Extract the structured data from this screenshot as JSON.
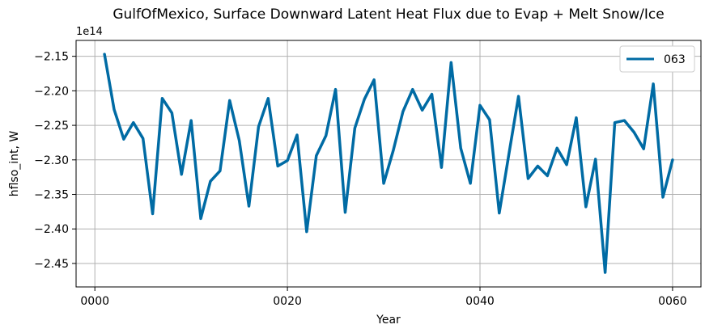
{
  "chart_data": {
    "type": "line",
    "title": "GulfOfMexico, Surface Downward Latent Heat Flux due to Evap + Melt Snow/Ice",
    "xlabel": "Year",
    "ylabel": "hflso_int, W",
    "y_offset_label": "1e14",
    "y_scale": 100000000000000.0,
    "xlim": [
      -1.95,
      62.95
    ],
    "ylim": [
      -248400000000000.0,
      -212700000000000.0
    ],
    "x_ticks": [
      0,
      20,
      40,
      60
    ],
    "x_tick_labels": [
      "0000",
      "0020",
      "0040",
      "0060"
    ],
    "y_ticks": [
      -245000000000000.0,
      -240000000000000.0,
      -235000000000000.0,
      -230000000000000.0,
      -225000000000000.0,
      -220000000000000.0,
      -215000000000000.0
    ],
    "y_tick_labels": [
      "−2.45",
      "−2.40",
      "−2.35",
      "−2.30",
      "−2.25",
      "−2.20",
      "−2.15"
    ],
    "grid": true,
    "legend_position": "top-right",
    "series": [
      {
        "name": "063",
        "color": "#006ba4",
        "x": [
          1,
          2,
          3,
          4,
          5,
          6,
          7,
          8,
          9,
          10,
          11,
          12,
          13,
          14,
          15,
          16,
          17,
          18,
          19,
          20,
          21,
          22,
          23,
          24,
          25,
          26,
          27,
          28,
          29,
          30,
          31,
          32,
          33,
          34,
          35,
          36,
          37,
          38,
          39,
          40,
          41,
          42,
          43,
          44,
          45,
          46,
          47,
          48,
          49,
          50,
          51,
          52,
          53,
          54,
          55,
          56,
          57,
          58,
          59,
          60
        ],
        "values": [
          -214700000000000.0,
          -222700000000000.0,
          -227000000000000.0,
          -224600000000000.0,
          -226900000000000.0,
          -237800000000000.0,
          -221100000000000.0,
          -223200000000000.0,
          -232100000000000.0,
          -224300000000000.0,
          -238500000000000.0,
          -233100000000000.0,
          -231600000000000.0,
          -221400000000000.0,
          -227200000000000.0,
          -236700000000000.0,
          -225200000000000.0,
          -221100000000000.0,
          -230900000000000.0,
          -230100000000000.0,
          -226400000000000.0,
          -240400000000000.0,
          -229400000000000.0,
          -226500000000000.0,
          -219800000000000.0,
          -237600000000000.0,
          -225400000000000.0,
          -221200000000000.0,
          -218400000000000.0,
          -233400000000000.0,
          -228600000000000.0,
          -223000000000000.0,
          -219800000000000.0,
          -222800000000000.0,
          -220500000000000.0,
          -231100000000000.0,
          -215900000000000.0,
          -228300000000000.0,
          -233400000000000.0,
          -222100000000000.0,
          -224200000000000.0,
          -237700000000000.0,
          -229200000000000.0,
          -220800000000000.0,
          -232700000000000.0,
          -230900000000000.0,
          -232300000000000.0,
          -228300000000000.0,
          -230700000000000.0,
          -223900000000000.0,
          -236800000000000.0,
          -229900000000000.0,
          -246300000000000.0,
          -224600000000000.0,
          -224300000000000.0,
          -226000000000000.0,
          -228400000000000.0,
          -219000000000000.0,
          -235400000000000.0,
          -230000000000000.0
        ]
      }
    ]
  }
}
